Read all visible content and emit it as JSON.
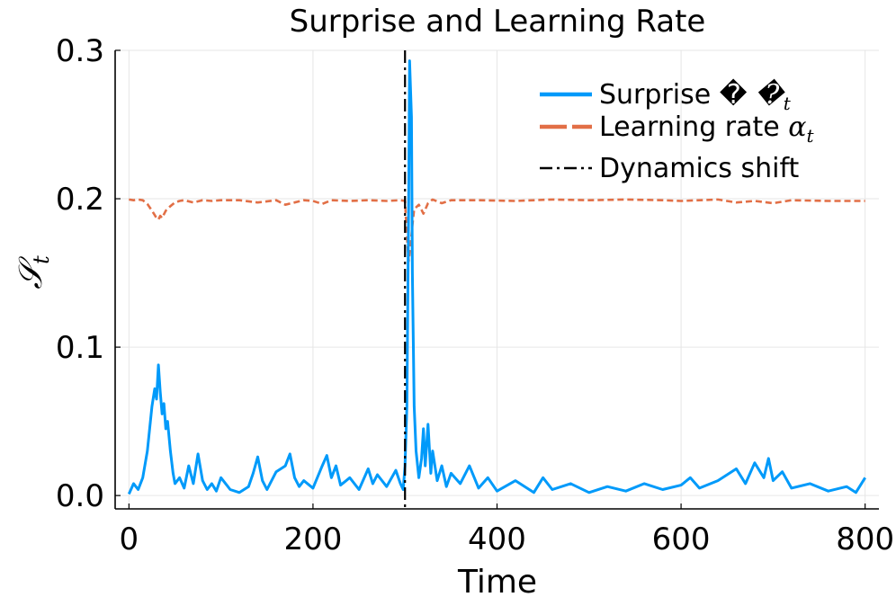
{
  "chart_data": {
    "type": "line",
    "title": "Surprise and Learning Rate",
    "xlabel": "Time",
    "ylabel": "𝒮",
    "ylabel_sub": "t",
    "xlim": [
      -15,
      815
    ],
    "ylim": [
      -0.009,
      0.3
    ],
    "xticks": [
      0,
      200,
      400,
      600,
      800
    ],
    "xtick_labels": [
      "0",
      "200",
      "400",
      "600",
      "800"
    ],
    "yticks": [
      0.0,
      0.1,
      0.2,
      0.3
    ],
    "ytick_labels": [
      "0.0",
      "0.1",
      "0.2",
      "0.3"
    ],
    "grid": true,
    "legend_position": "top-right",
    "colors": {
      "surprise": "#009AFA",
      "learning_rate": "#E26F46",
      "shift": "#000000"
    },
    "series": [
      {
        "name": "Surprise 𝒮",
        "name_sub": "t",
        "style": "solid",
        "x": [
          0,
          5,
          10,
          15,
          20,
          25,
          28,
          30,
          32,
          34,
          36,
          38,
          40,
          42,
          45,
          48,
          50,
          55,
          60,
          65,
          70,
          75,
          80,
          85,
          90,
          95,
          100,
          110,
          120,
          130,
          135,
          140,
          145,
          150,
          160,
          170,
          175,
          180,
          185,
          190,
          200,
          210,
          215,
          220,
          225,
          230,
          240,
          250,
          260,
          265,
          270,
          280,
          290,
          295,
          298,
          300,
          302,
          304,
          305,
          307,
          308,
          310,
          312,
          315,
          318,
          320,
          322,
          325,
          328,
          330,
          335,
          340,
          345,
          350,
          360,
          370,
          380,
          390,
          400,
          420,
          440,
          450,
          460,
          480,
          500,
          520,
          540,
          560,
          580,
          600,
          610,
          620,
          640,
          660,
          670,
          680,
          690,
          695,
          700,
          710,
          720,
          740,
          760,
          780,
          790,
          800
        ],
        "y": [
          0.001,
          0.008,
          0.004,
          0.012,
          0.03,
          0.06,
          0.072,
          0.065,
          0.088,
          0.07,
          0.055,
          0.062,
          0.045,
          0.05,
          0.03,
          0.015,
          0.008,
          0.012,
          0.005,
          0.02,
          0.008,
          0.028,
          0.01,
          0.004,
          0.008,
          0.003,
          0.012,
          0.004,
          0.002,
          0.006,
          0.015,
          0.026,
          0.01,
          0.004,
          0.016,
          0.02,
          0.028,
          0.012,
          0.006,
          0.01,
          0.005,
          0.02,
          0.027,
          0.012,
          0.02,
          0.007,
          0.012,
          0.004,
          0.018,
          0.008,
          0.014,
          0.006,
          0.017,
          0.008,
          0.004,
          0.02,
          0.06,
          0.2,
          0.293,
          0.255,
          0.15,
          0.06,
          0.03,
          0.012,
          0.025,
          0.045,
          0.02,
          0.048,
          0.015,
          0.03,
          0.01,
          0.02,
          0.006,
          0.015,
          0.008,
          0.02,
          0.005,
          0.012,
          0.003,
          0.01,
          0.002,
          0.012,
          0.004,
          0.008,
          0.002,
          0.006,
          0.003,
          0.008,
          0.004,
          0.007,
          0.012,
          0.005,
          0.01,
          0.018,
          0.008,
          0.022,
          0.012,
          0.025,
          0.01,
          0.016,
          0.005,
          0.008,
          0.003,
          0.006,
          0.002,
          0.012
        ]
      },
      {
        "name": "Learning rate α",
        "name_sub": "t",
        "style": "dashed",
        "x": [
          0,
          5,
          10,
          15,
          20,
          25,
          28,
          30,
          32,
          34,
          36,
          38,
          40,
          45,
          50,
          55,
          60,
          70,
          80,
          90,
          100,
          120,
          140,
          160,
          170,
          180,
          190,
          200,
          210,
          220,
          240,
          260,
          280,
          295,
          300,
          302,
          304,
          306,
          308,
          310,
          315,
          320,
          325,
          330,
          340,
          350,
          380,
          420,
          460,
          500,
          540,
          580,
          600,
          640,
          660,
          680,
          700,
          720,
          760,
          800
        ],
        "y": [
          0.1995,
          0.199,
          0.1995,
          0.199,
          0.1965,
          0.192,
          0.189,
          0.187,
          0.186,
          0.1885,
          0.187,
          0.1895,
          0.192,
          0.195,
          0.1975,
          0.1985,
          0.199,
          0.1975,
          0.199,
          0.1985,
          0.199,
          0.199,
          0.1975,
          0.199,
          0.196,
          0.1975,
          0.199,
          0.1985,
          0.1965,
          0.199,
          0.1985,
          0.199,
          0.1985,
          0.199,
          0.1985,
          0.175,
          0.158,
          0.168,
          0.182,
          0.193,
          0.196,
          0.19,
          0.197,
          0.1995,
          0.197,
          0.199,
          0.199,
          0.1985,
          0.1995,
          0.199,
          0.1995,
          0.199,
          0.1985,
          0.1995,
          0.1975,
          0.1985,
          0.197,
          0.199,
          0.1985,
          0.1985
        ]
      },
      {
        "name": "Dynamics shift",
        "style": "dashdot",
        "vline": 300
      }
    ]
  }
}
